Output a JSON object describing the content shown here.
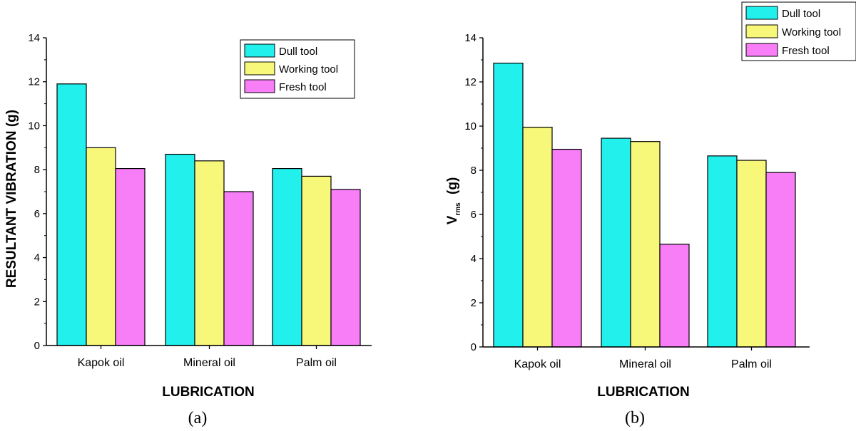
{
  "chart_data": [
    {
      "type": "bar",
      "caption": "(a)",
      "xlabel": "LUBRICATION",
      "ylabel": "RESULTANT VIBRATION (g)",
      "ylim": [
        0,
        14
      ],
      "yticks": [
        "0",
        "2",
        "4",
        "6",
        "8",
        "10",
        "12",
        "14"
      ],
      "categories": [
        "Kapok oil",
        "Mineral oil",
        "Palm oil"
      ],
      "legend_position": "top-right",
      "series": [
        {
          "name": "Dull tool",
          "color": "#22f0ec",
          "values": [
            11.9,
            8.7,
            8.05
          ]
        },
        {
          "name": "Working tool",
          "color": "#f7f77a",
          "values": [
            9.0,
            8.4,
            7.7
          ]
        },
        {
          "name": "Fresh tool",
          "color": "#f77ef7",
          "values": [
            8.05,
            7.0,
            7.1
          ]
        }
      ]
    },
    {
      "type": "bar",
      "caption": "(b)",
      "xlabel": "LUBRICATION",
      "ylabel_main": "V",
      "ylabel_sub": "rms",
      "ylabel_unit": "(g)",
      "ylim": [
        0,
        14
      ],
      "yticks": [
        "0",
        "2",
        "4",
        "6",
        "8",
        "10",
        "12",
        "14"
      ],
      "categories": [
        "Kapok oil",
        "Mineral oil",
        "Palm oil"
      ],
      "legend_position": "top-right",
      "series": [
        {
          "name": "Dull tool",
          "color": "#22f0ec",
          "values": [
            12.85,
            9.45,
            8.65
          ]
        },
        {
          "name": "Working tool",
          "color": "#f7f77a",
          "values": [
            9.95,
            9.3,
            8.45
          ]
        },
        {
          "name": "Fresh tool",
          "color": "#f77ef7",
          "values": [
            8.95,
            4.65,
            7.9
          ]
        }
      ]
    }
  ]
}
